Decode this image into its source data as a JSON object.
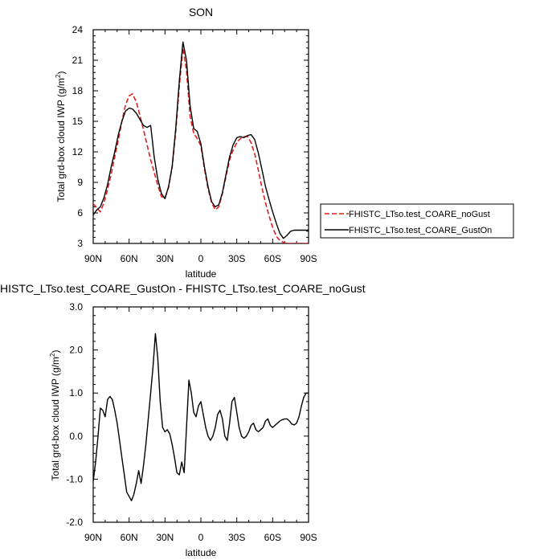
{
  "chart_data": [
    {
      "type": "line",
      "title": "SON",
      "xlabel": "latitude",
      "ylabel": "Total grd-box cloud IWP (g/m",
      "ylabel_sup": "2",
      "ylabel_end": ")",
      "xlim": [
        90,
        -90
      ],
      "ylim": [
        3,
        24
      ],
      "x_ticks": [
        90,
        60,
        30,
        0,
        -30,
        -60,
        -90
      ],
      "x_tick_labels": [
        "90N",
        "60N",
        "30N",
        "0",
        "30S",
        "60S",
        "90S"
      ],
      "y_ticks": [
        3,
        6,
        9,
        12,
        15,
        18,
        21,
        24
      ],
      "y_tick_labels": [
        "3",
        "6",
        "9",
        "12",
        "15",
        "18",
        "21",
        "24"
      ],
      "grid": false,
      "legend": "right",
      "series": [
        {
          "name": "FHISTC_LTso.test_COARE_noGust",
          "color": "#e0201e",
          "dash": "dashed",
          "x": [
            90,
            87,
            84,
            81,
            78,
            75,
            72,
            69,
            66,
            63,
            60,
            57,
            54,
            51,
            48,
            45,
            42,
            39,
            36,
            33,
            30,
            27,
            24,
            21,
            18,
            15,
            12,
            9,
            6,
            3,
            0,
            -3,
            -6,
            -9,
            -12,
            -15,
            -18,
            -21,
            -24,
            -27,
            -30,
            -33,
            -36,
            -39,
            -42,
            -45,
            -48,
            -51,
            -54,
            -57,
            -60,
            -63,
            -66,
            -69,
            -72,
            -75,
            -78,
            -81,
            -84,
            -87,
            -90
          ],
          "y": [
            6.9,
            6.5,
            6.1,
            7.0,
            8.3,
            9.8,
            11.5,
            13.2,
            15.0,
            16.6,
            17.5,
            17.7,
            16.9,
            15.6,
            14.2,
            12.7,
            11.2,
            10.0,
            8.7,
            7.6,
            7.5,
            8.5,
            10.5,
            14.0,
            18.5,
            22.2,
            20.0,
            15.5,
            13.8,
            13.3,
            12.6,
            10.3,
            8.4,
            7.0,
            6.3,
            6.6,
            7.9,
            9.6,
            11.2,
            12.2,
            12.9,
            13.3,
            13.5,
            13.5,
            12.9,
            11.8,
            10.2,
            8.5,
            7.0,
            5.7,
            4.6,
            3.7,
            3.3,
            3.1,
            3.0,
            3.0,
            3.0,
            3.0,
            3.0,
            3.0,
            3.0
          ]
        },
        {
          "name": "FHISTC_LTso.test_COARE_GustOn",
          "color": "#000000",
          "dash": "solid",
          "x": [
            90,
            87,
            84,
            81,
            78,
            75,
            72,
            69,
            66,
            63,
            60,
            57,
            54,
            51,
            48,
            45,
            42,
            39,
            36,
            33,
            30,
            27,
            24,
            21,
            18,
            15,
            12,
            9,
            6,
            3,
            0,
            -3,
            -6,
            -9,
            -12,
            -15,
            -18,
            -21,
            -24,
            -27,
            -30,
            -33,
            -36,
            -39,
            -42,
            -45,
            -48,
            -51,
            -54,
            -57,
            -60,
            -63,
            -66,
            -69,
            -72,
            -75,
            -78,
            -81,
            -84,
            -87,
            -90
          ],
          "y": [
            5.8,
            6.3,
            6.6,
            7.5,
            8.8,
            10.5,
            12.0,
            13.7,
            15.0,
            16.0,
            16.3,
            16.2,
            15.8,
            15.2,
            14.6,
            14.4,
            14.6,
            11.5,
            9.3,
            7.9,
            7.4,
            8.6,
            10.6,
            14.3,
            19.0,
            22.8,
            21.0,
            16.5,
            14.3,
            14.0,
            12.8,
            10.5,
            8.6,
            7.1,
            6.6,
            6.8,
            8.0,
            9.8,
            11.5,
            12.7,
            13.4,
            13.5,
            13.4,
            13.6,
            13.7,
            13.2,
            11.9,
            10.3,
            8.6,
            7.3,
            6.1,
            5.0,
            4.0,
            3.5,
            3.8,
            4.2,
            4.3,
            4.3,
            4.3,
            4.3,
            4.3
          ]
        }
      ]
    },
    {
      "type": "line",
      "title": "HISTC_LTso.test_COARE_GustOn - FHISTC_LTso.test_COARE_noGust",
      "xlabel": "latitude",
      "ylabel": "Total grd-box cloud IWP (g/m",
      "ylabel_sup": "2",
      "ylabel_end": ")",
      "xlim": [
        90,
        -90
      ],
      "ylim": [
        -2,
        3
      ],
      "x_ticks": [
        90,
        60,
        30,
        0,
        -30,
        -60,
        -90
      ],
      "x_tick_labels": [
        "90N",
        "60N",
        "30N",
        "0",
        "30S",
        "60S",
        "90S"
      ],
      "y_ticks": [
        -2,
        -1,
        0,
        1,
        2,
        3
      ],
      "y_tick_labels": [
        "-2.0",
        "-1.0",
        "0.0",
        "1.0",
        "2.0",
        "3.0"
      ],
      "grid": false,
      "series": [
        {
          "name": "",
          "color": "#000000",
          "dash": "solid",
          "x": [
            90,
            88,
            86,
            84,
            82,
            80,
            78,
            76,
            74,
            72,
            70,
            68,
            66,
            64,
            62,
            60,
            58,
            56,
            54,
            52,
            50,
            48,
            46,
            44,
            42,
            40,
            38,
            36,
            34,
            32,
            30,
            28,
            26,
            24,
            22,
            20,
            18,
            16,
            14,
            12,
            10,
            8,
            6,
            4,
            2,
            0,
            -2,
            -4,
            -6,
            -8,
            -10,
            -12,
            -14,
            -16,
            -18,
            -20,
            -22,
            -24,
            -26,
            -28,
            -30,
            -32,
            -34,
            -36,
            -38,
            -40,
            -42,
            -44,
            -46,
            -48,
            -50,
            -52,
            -54,
            -56,
            -58,
            -60,
            -62,
            -64,
            -66,
            -68,
            -70,
            -72,
            -74,
            -76,
            -78,
            -80,
            -82,
            -84,
            -86,
            -88,
            -90
          ],
          "y": [
            -1.05,
            -0.6,
            0.0,
            0.65,
            0.6,
            0.45,
            0.85,
            0.92,
            0.85,
            0.6,
            0.3,
            -0.1,
            -0.5,
            -0.9,
            -1.3,
            -1.4,
            -1.5,
            -1.35,
            -1.1,
            -0.8,
            -1.1,
            -0.7,
            -0.2,
            0.4,
            1.0,
            1.6,
            2.38,
            1.8,
            0.8,
            0.2,
            0.1,
            0.15,
            0.05,
            -0.2,
            -0.5,
            -0.85,
            -0.9,
            -0.6,
            -0.85,
            0.2,
            1.3,
            1.0,
            0.55,
            0.45,
            0.7,
            0.8,
            0.5,
            0.2,
            0.0,
            -0.1,
            0.0,
            0.2,
            0.5,
            0.6,
            0.4,
            0.0,
            -0.1,
            0.3,
            0.8,
            0.9,
            0.55,
            0.2,
            0.0,
            -0.05,
            0.0,
            0.1,
            0.25,
            0.3,
            0.15,
            0.1,
            0.15,
            0.2,
            0.35,
            0.4,
            0.25,
            0.2,
            0.25,
            0.3,
            0.35,
            0.38,
            0.4,
            0.4,
            0.35,
            0.28,
            0.26,
            0.3,
            0.45,
            0.7,
            0.9,
            1.0,
            1.0
          ]
        }
      ]
    }
  ]
}
